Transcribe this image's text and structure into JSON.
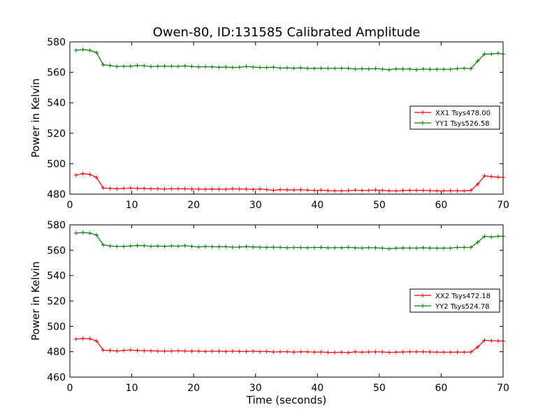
{
  "figure": {
    "title": "Owen-80, ID:131585 Calibrated Amplitude"
  },
  "chart_data": [
    {
      "type": "line",
      "title": "Owen-80, ID:131585 Calibrated Amplitude",
      "xlabel": "",
      "ylabel": "Power in Kelvin",
      "xlim": [
        0,
        70
      ],
      "ylim": [
        480,
        580
      ],
      "xticks": [
        0,
        10,
        20,
        30,
        40,
        50,
        60,
        70
      ],
      "yticks": [
        480,
        500,
        520,
        540,
        560,
        580
      ],
      "grid": false,
      "legend_position": "right",
      "x": [
        1,
        2.1,
        3.2,
        4.3,
        5.4,
        6.5,
        7.6,
        8.7,
        9.8,
        10.9,
        12,
        13.1,
        14.2,
        15.3,
        16.4,
        17.5,
        18.6,
        19.7,
        20.8,
        21.9,
        23,
        24.1,
        25.2,
        26.3,
        27.4,
        28.5,
        29.6,
        30.7,
        31.8,
        32.9,
        34,
        35.1,
        36.2,
        37.3,
        38.4,
        39.5,
        40.6,
        41.7,
        42.8,
        43.9,
        45,
        46.1,
        47.2,
        48.3,
        49.4,
        50.5,
        51.6,
        52.7,
        53.8,
        54.9,
        56,
        57.1,
        58.2,
        59.3,
        60.4,
        61.5,
        62.6,
        63.7,
        64.8,
        65.9,
        67,
        68.1,
        69.2,
        70
      ],
      "series": [
        {
          "name": "XX1 Tsys478.00",
          "color": "#ff0000",
          "values": [
            492.5,
            493.5,
            493,
            491,
            484,
            483.8,
            483.5,
            483.8,
            484,
            483.8,
            483.7,
            483.5,
            483.5,
            483.4,
            483.5,
            483.5,
            483.5,
            483.4,
            483.3,
            483.2,
            483.4,
            483.3,
            483.2,
            483.5,
            483.4,
            483.3,
            483.1,
            483.4,
            483,
            482.5,
            483,
            482.8,
            482.7,
            482.9,
            482.6,
            482.5,
            482.6,
            482.3,
            482.2,
            482.2,
            482.3,
            482.6,
            482.4,
            482.5,
            482.7,
            482.5,
            482.2,
            482.1,
            482.4,
            482.5,
            482.5,
            482.5,
            482.3,
            482.1,
            482.1,
            482.2,
            482.2,
            482.1,
            482.5,
            486.5,
            492,
            491.5,
            491.2,
            491
          ],
          "label_binding": "legend1.0"
        },
        {
          "name": "YY1 Tsys526.58",
          "color": "#008000",
          "values": [
            574.5,
            575,
            574.5,
            573,
            565,
            564.5,
            563.8,
            564,
            564,
            564.5,
            564.3,
            563.8,
            564,
            564,
            564,
            563.9,
            564.2,
            563.8,
            563.6,
            563.7,
            563.6,
            563.3,
            563.5,
            563.2,
            563.3,
            563.8,
            563.5,
            563.2,
            563.2,
            563.4,
            562.8,
            563,
            562.7,
            563,
            562.6,
            562.6,
            562.7,
            562.6,
            562.6,
            562.7,
            562.6,
            562.2,
            562.4,
            562.3,
            562.5,
            562.1,
            561.7,
            562.3,
            562.2,
            562.2,
            561.8,
            562.2,
            562,
            562,
            562,
            562,
            562.5,
            562.7,
            562.5,
            567.5,
            572,
            572,
            572.5,
            572
          ],
          "label_binding": "legend1.1"
        }
      ]
    },
    {
      "type": "line",
      "title": "",
      "xlabel": "Time (seconds)",
      "ylabel": "Power in Kelvin",
      "xlim": [
        0,
        70
      ],
      "ylim": [
        460,
        580
      ],
      "xticks": [
        0,
        10,
        20,
        30,
        40,
        50,
        60,
        70
      ],
      "yticks": [
        460,
        480,
        500,
        520,
        540,
        560,
        580
      ],
      "grid": false,
      "legend_position": "right",
      "x": [
        1,
        2.1,
        3.2,
        4.3,
        5.4,
        6.5,
        7.6,
        8.7,
        9.8,
        10.9,
        12,
        13.1,
        14.2,
        15.3,
        16.4,
        17.5,
        18.6,
        19.7,
        20.8,
        21.9,
        23,
        24.1,
        25.2,
        26.3,
        27.4,
        28.5,
        29.6,
        30.7,
        31.8,
        32.9,
        34,
        35.1,
        36.2,
        37.3,
        38.4,
        39.5,
        40.6,
        41.7,
        42.8,
        43.9,
        45,
        46.1,
        47.2,
        48.3,
        49.4,
        50.5,
        51.6,
        52.7,
        53.8,
        54.9,
        56,
        57.1,
        58.2,
        59.3,
        60.4,
        61.5,
        62.6,
        63.7,
        64.8,
        65.9,
        67,
        68.1,
        69.2,
        70
      ],
      "series": [
        {
          "name": "XX2 Tsys472.18",
          "color": "#ff0000",
          "values": [
            490,
            490.5,
            490.3,
            488.5,
            481.2,
            481,
            480.6,
            481,
            481.3,
            481,
            480.8,
            480.7,
            480.6,
            480.5,
            480.6,
            480.7,
            480.6,
            480.5,
            480.5,
            480.2,
            480.5,
            480.4,
            480.2,
            480.5,
            480.3,
            480.2,
            480.4,
            480.1,
            480.2,
            479.8,
            480,
            480,
            479.7,
            480,
            479.9,
            479.7,
            479.8,
            479.5,
            479.5,
            479.6,
            479.3,
            479.9,
            479.6,
            479.8,
            479.9,
            479.8,
            479.5,
            479.6,
            479.8,
            479.9,
            479.9,
            479.9,
            479.8,
            479.6,
            479.6,
            479.6,
            479.7,
            479.6,
            479.8,
            483.7,
            489,
            488.7,
            488.5,
            488.4
          ],
          "label_binding": "legend2.0"
        },
        {
          "name": "YY2 Tsys524.78",
          "color": "#008000",
          "values": [
            573.5,
            574,
            573.5,
            572,
            564.2,
            563.4,
            563,
            563,
            563.3,
            563.7,
            563.6,
            563.1,
            563.4,
            563,
            563.4,
            563.2,
            563.6,
            563.1,
            562.6,
            563,
            562.8,
            562.7,
            562.8,
            562.4,
            562.5,
            562.9,
            562.6,
            562.4,
            562.3,
            562.4,
            562.2,
            562,
            562.1,
            562.1,
            562,
            562.1,
            562.2,
            561.9,
            562,
            562,
            562.2,
            561.9,
            561.8,
            562,
            561.9,
            561.6,
            561.2,
            561.6,
            561.8,
            561.7,
            561.7,
            561.9,
            561.7,
            561.6,
            561.6,
            561.7,
            562.2,
            562.2,
            562.3,
            566.3,
            571,
            570.5,
            571,
            571
          ],
          "label_binding": "legend2.1"
        }
      ]
    }
  ],
  "legend1": [
    "XX1 Tsys478.00",
    "YY1 Tsys526.58"
  ],
  "legend2": [
    "XX2 Tsys472.18",
    "YY2 Tsys524.78"
  ]
}
